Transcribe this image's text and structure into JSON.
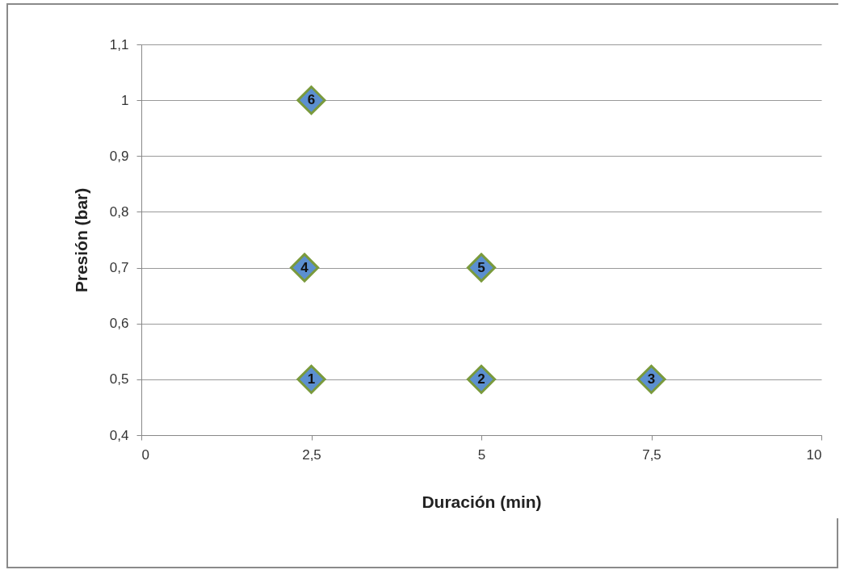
{
  "chart_data": {
    "type": "scatter",
    "xlabel": "Duración (min)",
    "ylabel": "Presión (bar)",
    "x": [
      2.5,
      5,
      7.5,
      2.4,
      5,
      2.5
    ],
    "series": [
      {
        "color": "#5b8fd0",
        "values": [
          0.5,
          0.5,
          0.5,
          0.7,
          0.7,
          1
        ]
      }
    ],
    "annotations": [
      {
        "text": "1",
        "x": 2.5,
        "y": 0.5
      },
      {
        "text": "2",
        "x": 5,
        "y": 0.5
      },
      {
        "text": "3",
        "x": 7.5,
        "y": 0.5
      },
      {
        "text": "4",
        "x": 2.4,
        "y": 0.7
      },
      {
        "text": "5",
        "x": 5,
        "y": 0.7
      },
      {
        "text": "6",
        "x": 2.5,
        "y": 1
      }
    ],
    "xlim": [
      0,
      10
    ],
    "xticks": [
      0,
      {
        "value": 2.5,
        "label": "2,5"
      },
      5,
      {
        "value": 7.5,
        "label": "7,5"
      },
      10
    ],
    "ylim": [
      0.4,
      1.1
    ],
    "yticks": [
      {
        "value": 0.4,
        "label": "0,4"
      },
      {
        "value": 0.5,
        "label": "0,5"
      },
      {
        "value": 0.6,
        "label": "0,6"
      },
      {
        "value": 0.7,
        "label": "0,7"
      },
      {
        "value": 0.8,
        "label": "0,8"
      },
      {
        "value": 0.9,
        "label": "0,9"
      },
      {
        "value": 1,
        "label": "1"
      },
      {
        "value": 1.1,
        "label": "1,1"
      }
    ],
    "grid": "y",
    "marker": "diamond"
  }
}
